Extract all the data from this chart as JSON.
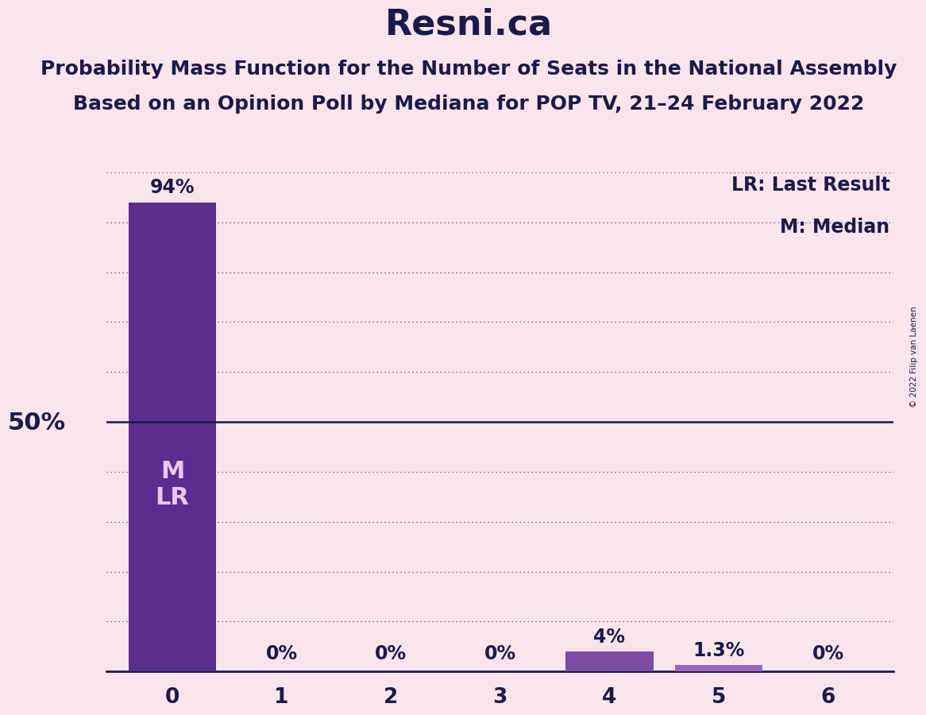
{
  "title": "Resni.ca",
  "subtitle1": "Probability Mass Function for the Number of Seats in the National Assembly",
  "subtitle2": "Based on an Opinion Poll by Mediana for POP TV, 21–24 February 2022",
  "copyright": "© 2022 Filip van Laenen",
  "legend_lr": "LR: Last Result",
  "legend_m": "M: Median",
  "ylabel_50": "50%",
  "categories": [
    0,
    1,
    2,
    3,
    4,
    5,
    6
  ],
  "values": [
    94,
    0,
    0,
    0,
    4,
    1.3,
    0
  ],
  "bar_colors": [
    "#5b2d8e",
    "#d4b0e0",
    "#d4b0e0",
    "#d4b0e0",
    "#7b4ca0",
    "#9966bb",
    "#d4b0e0"
  ],
  "bar_labels": [
    "94%",
    "0%",
    "0%",
    "0%",
    "4%",
    "1.3%",
    "0%"
  ],
  "fifty_pct_line": 50,
  "background_color": "#fce4ec",
  "grid_color": "#1a1a4a",
  "axis_color": "#1a1a4a",
  "text_color": "#1a1a4a",
  "label_color_inside": "#e8c8f0",
  "title_fontsize": 32,
  "subtitle_fontsize": 18,
  "label_fontsize": 17,
  "tick_fontsize": 19,
  "annotation_fontsize": 17,
  "ylabel_fontsize": 22,
  "inside_label_fontsize": 22,
  "ytick_values": [
    10,
    20,
    30,
    40,
    60,
    70,
    80,
    90,
    100
  ],
  "ylim_max": 100
}
